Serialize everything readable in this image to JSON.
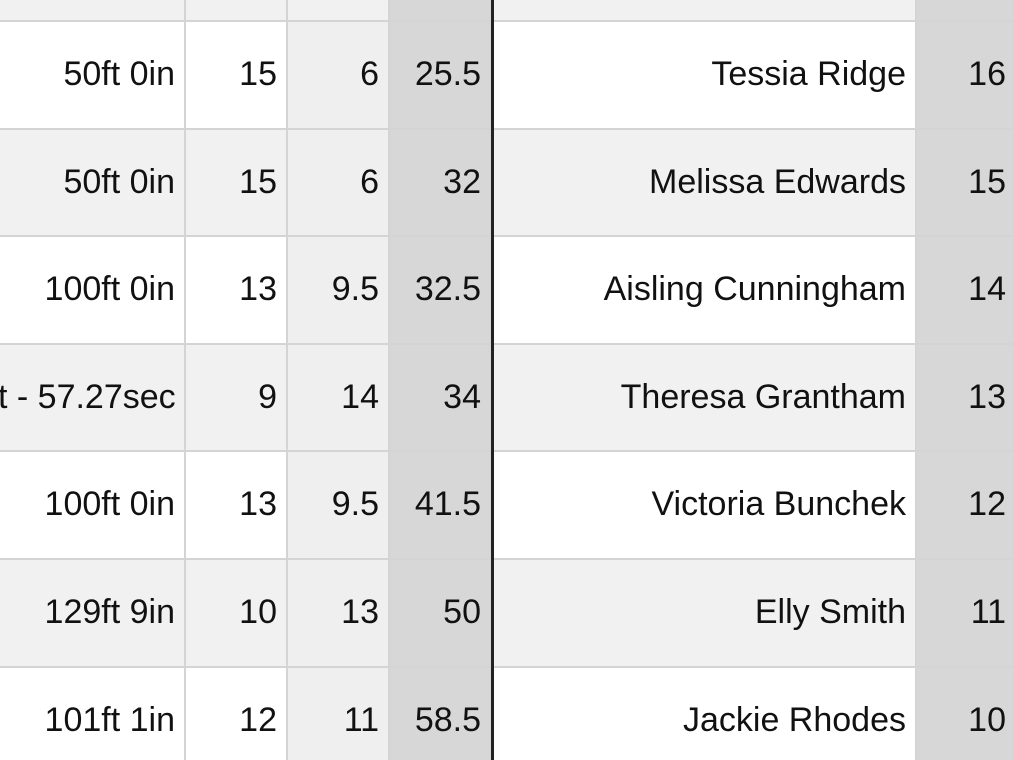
{
  "table": {
    "rows": [
      [
        "50ft 0in",
        "15",
        "6",
        "25.5",
        "Tessia Ridge",
        "16"
      ],
      [
        "50ft 0in",
        "15",
        "6",
        "32",
        "Melissa Edwards",
        "15"
      ],
      [
        "100ft 0in",
        "13",
        "9.5",
        "32.5",
        "Aisling Cunningham",
        "14"
      ],
      [
        "t - 57.27sec",
        "9",
        "14",
        "34",
        "Theresa Grantham",
        "13"
      ],
      [
        "100ft 0in",
        "13",
        "9.5",
        "41.5",
        "Victoria Bunchek",
        "12"
      ],
      [
        "129ft 9in",
        "10",
        "13",
        "50",
        "Elly Smith",
        "11"
      ],
      [
        "101ft 1in",
        "12",
        "11",
        "58.5",
        "Jackie Rhodes",
        "10"
      ]
    ]
  }
}
